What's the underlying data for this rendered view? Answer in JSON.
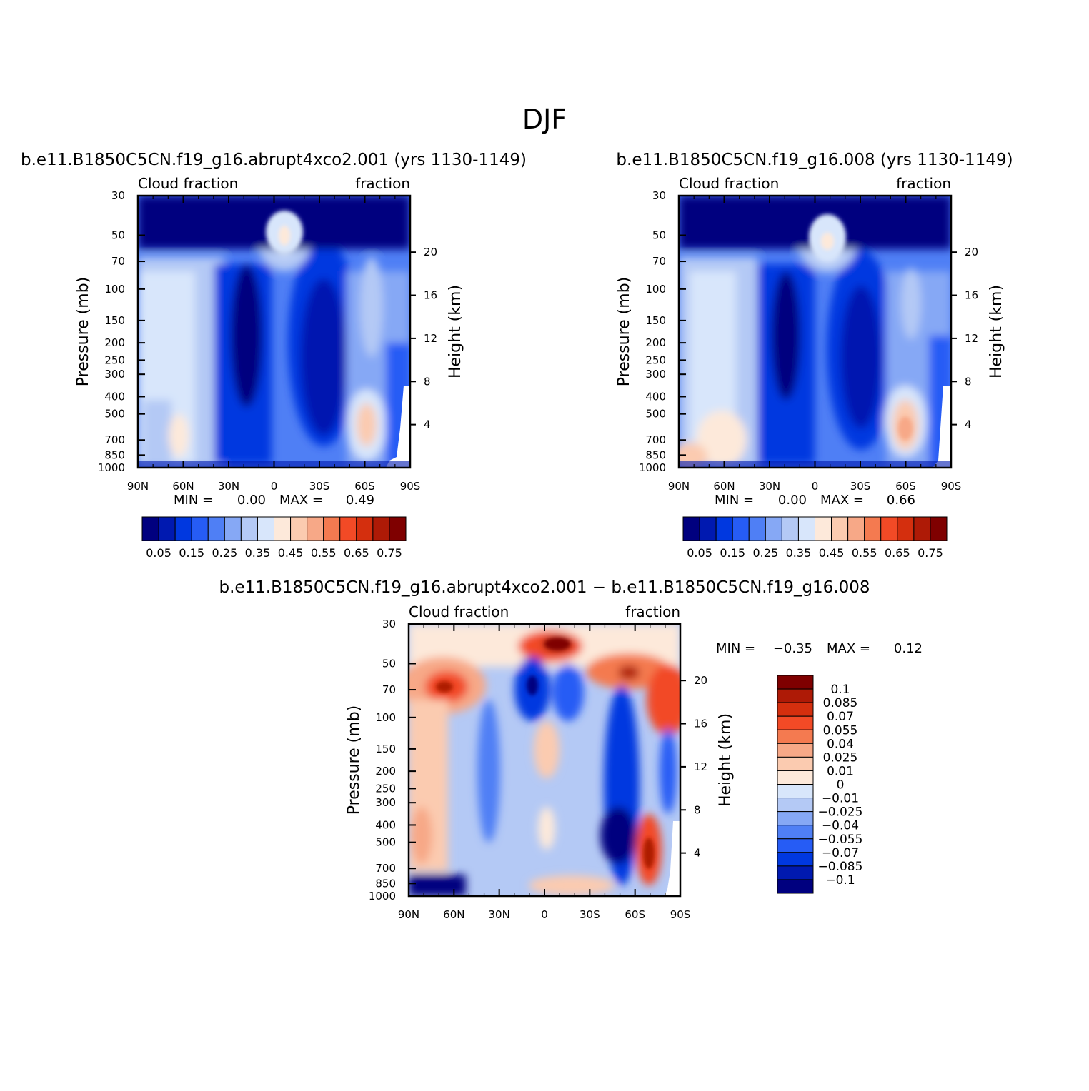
{
  "page_title": "DJF",
  "colors": {
    "field_scale": [
      "#00007f",
      "#0019b0",
      "#0038e0",
      "#265cf5",
      "#4f7ff5",
      "#86a8f5",
      "#b4c9f5",
      "#d8e6fb",
      "#fde9da",
      "#fbcbb0",
      "#f7a887",
      "#f47a50",
      "#f24a26",
      "#d42f0e",
      "#ae1a06",
      "#7f0000"
    ],
    "diff_scale": [
      "#00007f",
      "#0019b0",
      "#0038e0",
      "#265cf5",
      "#4f7ff5",
      "#86a8f5",
      "#b4c9f5",
      "#d8e6fb",
      "#fde9da",
      "#fbcbb0",
      "#f7a887",
      "#f47a50",
      "#f24a26",
      "#d42f0e",
      "#ae1a06",
      "#7f0000"
    ]
  },
  "chart_data": [
    {
      "type": "heatmap",
      "panel": "a",
      "title": "b.e11.B1850C5CN.f19_g16.abrupt4xco2.001 (yrs 1130-1149)",
      "left_label": "Cloud fraction",
      "right_label": "fraction",
      "xlabel": "",
      "ylabel": "Pressure (mb)",
      "y2label": "Height (km)",
      "x_ticks": [
        "90N",
        "60N",
        "30N",
        "0",
        "30S",
        "60S",
        "90S"
      ],
      "y_ticks": [
        "30",
        "50",
        "70",
        "100",
        "150",
        "200",
        "250",
        "300",
        "400",
        "500",
        "700",
        "850",
        "1000"
      ],
      "y2_ticks": [
        "20",
        "16",
        "12",
        "8",
        "4"
      ],
      "min_label": "MIN =",
      "min_value": "0.00",
      "max_label": "MAX =",
      "max_value": "0.49",
      "colorbar_labels": [
        "0.05",
        "0.15",
        "0.25",
        "0.35",
        "0.45",
        "0.55",
        "0.65",
        "0.75"
      ]
    },
    {
      "type": "heatmap",
      "panel": "b",
      "title": "b.e11.B1850C5CN.f19_g16.008 (yrs 1130-1149)",
      "left_label": "Cloud fraction",
      "right_label": "fraction",
      "xlabel": "",
      "ylabel": "Pressure (mb)",
      "y2label": "Height (km)",
      "x_ticks": [
        "90N",
        "60N",
        "30N",
        "0",
        "30S",
        "60S",
        "90S"
      ],
      "y_ticks": [
        "30",
        "50",
        "70",
        "100",
        "150",
        "200",
        "250",
        "300",
        "400",
        "500",
        "700",
        "850",
        "1000"
      ],
      "y2_ticks": [
        "20",
        "16",
        "12",
        "8",
        "4"
      ],
      "min_label": "MIN =",
      "min_value": "0.00",
      "max_label": "MAX =",
      "max_value": "0.66",
      "colorbar_labels": [
        "0.05",
        "0.15",
        "0.25",
        "0.35",
        "0.45",
        "0.55",
        "0.65",
        "0.75"
      ]
    },
    {
      "type": "heatmap",
      "panel": "diff",
      "title": "b.e11.B1850C5CN.f19_g16.abrupt4xco2.001 − b.e11.B1850C5CN.f19_g16.008",
      "left_label": "Cloud fraction",
      "right_label": "fraction",
      "xlabel": "",
      "ylabel": "Pressure (mb)",
      "y2label": "Height (km)",
      "x_ticks": [
        "90N",
        "60N",
        "30N",
        "0",
        "30S",
        "60S",
        "90S"
      ],
      "y_ticks": [
        "30",
        "50",
        "70",
        "100",
        "150",
        "200",
        "250",
        "300",
        "400",
        "500",
        "700",
        "850",
        "1000"
      ],
      "y2_ticks": [
        "20",
        "16",
        "12",
        "8",
        "4"
      ],
      "min_label": "MIN =",
      "min_value": "−0.35",
      "max_label": "MAX =",
      "max_value": "0.12",
      "colorbar_labels": [
        "0.1",
        "0.085",
        "0.07",
        "0.055",
        "0.04",
        "0.025",
        "0.01",
        "0",
        "−0.01",
        "−0.025",
        "−0.04",
        "−0.055",
        "−0.07",
        "−0.085",
        "−0.1"
      ]
    }
  ]
}
